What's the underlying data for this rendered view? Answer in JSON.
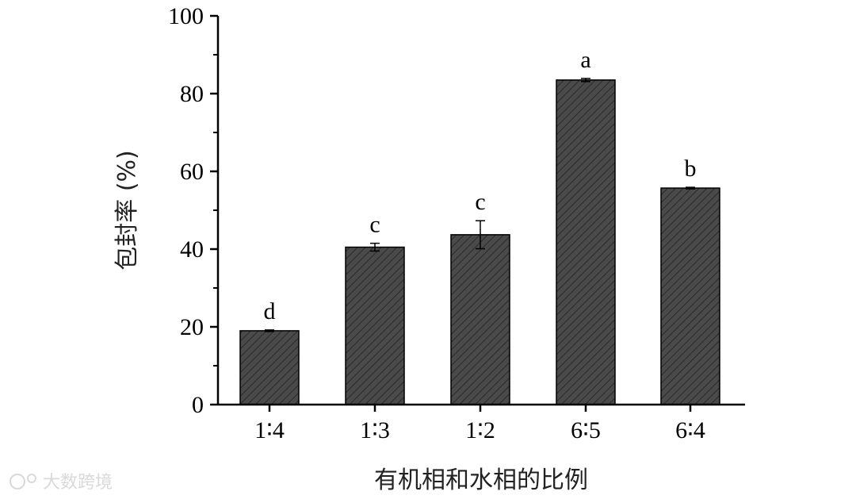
{
  "chart_data": {
    "type": "bar",
    "categories": [
      "1∶4",
      "1∶3",
      "1∶2",
      "6∶5",
      "6∶4"
    ],
    "values": [
      19,
      40.5,
      43.7,
      83.5,
      55.7
    ],
    "errors": [
      0.2,
      1.0,
      3.6,
      0.4,
      0.2
    ],
    "significance": [
      "d",
      "c",
      "c",
      "a",
      "b"
    ],
    "ylim": [
      0,
      100
    ],
    "yticks": [
      0,
      20,
      40,
      60,
      80,
      100
    ],
    "xlabel": "有机相和水相的比例",
    "ylabel": "包封率 (%)",
    "bar_color": "#4a4a4a",
    "grid": false
  },
  "watermark": "大数跨境"
}
